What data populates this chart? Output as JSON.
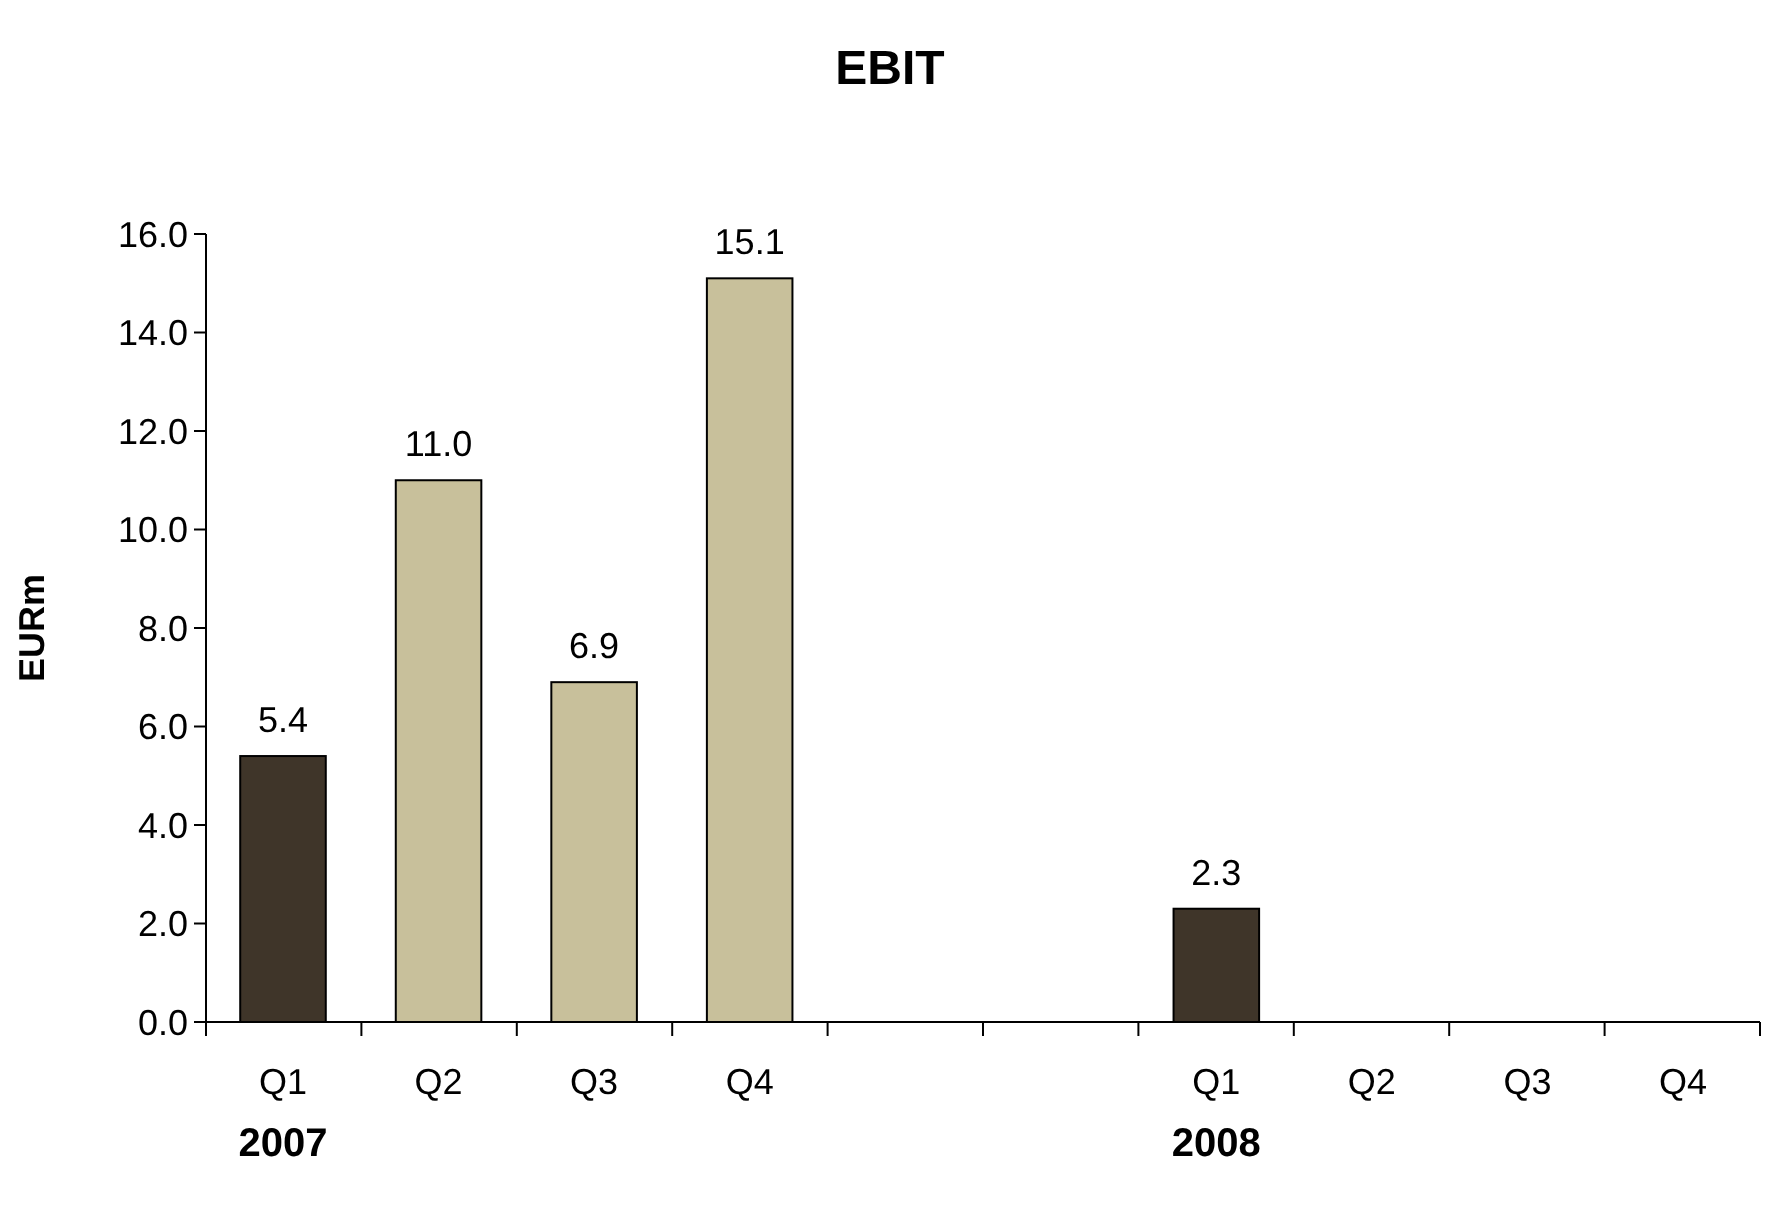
{
  "chart_data": {
    "type": "bar",
    "title": "EBIT",
    "ylabel": "EURm",
    "categories": [
      "Q1",
      "Q2",
      "Q3",
      "Q4",
      null,
      null,
      "Q1",
      "Q2",
      "Q3",
      "Q4"
    ],
    "values": [
      5.4,
      11.0,
      6.9,
      15.1,
      null,
      null,
      2.3,
      null,
      null,
      null
    ],
    "value_labels": [
      "5.4",
      "11.0",
      "6.9",
      "15.1",
      null,
      null,
      "2.3",
      null,
      null,
      null
    ],
    "colors": [
      "#3f3529",
      "#c8c09b",
      "#c8c09b",
      "#c8c09b",
      null,
      null,
      "#3f3529",
      null,
      null,
      null
    ],
    "ylim": [
      0,
      16
    ],
    "yticks": [
      {
        "value": 0,
        "label": "0.0"
      },
      {
        "value": 2,
        "label": "2.0"
      },
      {
        "value": 4,
        "label": "4.0"
      },
      {
        "value": 6,
        "label": "6.0"
      },
      {
        "value": 8,
        "label": "8.0"
      },
      {
        "value": 10,
        "label": "10.0"
      },
      {
        "value": 12,
        "label": "12.0"
      },
      {
        "value": 14,
        "label": "14.0"
      },
      {
        "value": 16,
        "label": "16.0"
      }
    ],
    "annotations": [
      "2007",
      "2008"
    ],
    "grid": false
  }
}
